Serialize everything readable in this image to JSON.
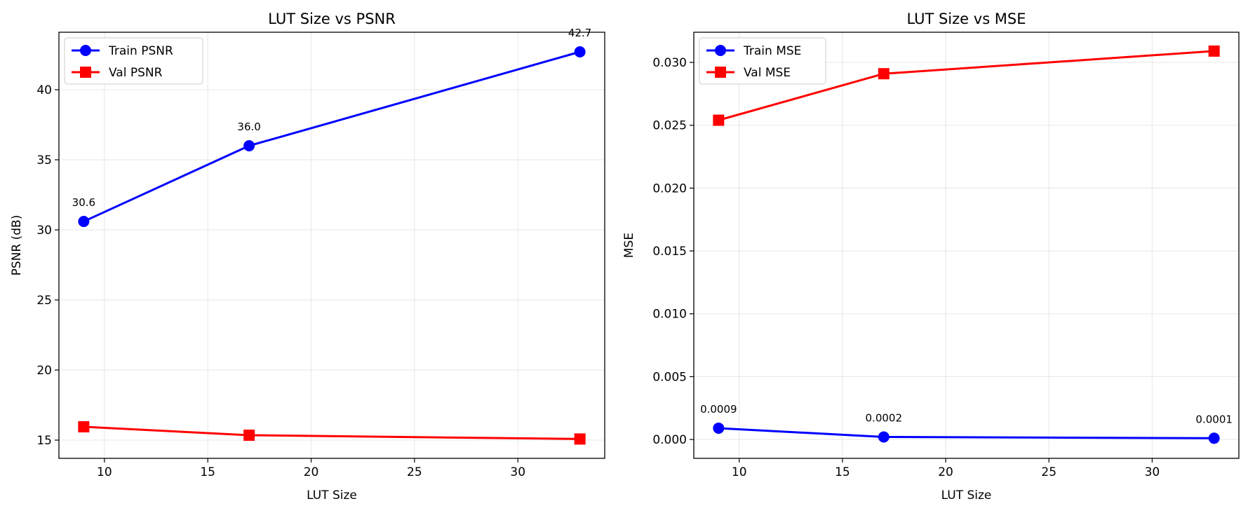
{
  "chart_data": [
    {
      "type": "line",
      "title": "LUT Size vs PSNR",
      "xlabel": "LUT Size",
      "ylabel": "PSNR (dB)",
      "xlim": [
        7.8,
        34.2
      ],
      "ylim": [
        13.7,
        44.1
      ],
      "x_ticks": [
        10,
        15,
        20,
        25,
        30
      ],
      "y_ticks": [
        15,
        20,
        25,
        30,
        35,
        40
      ],
      "grid": true,
      "legend_position": "upper left",
      "x": [
        9,
        17,
        33
      ],
      "series": [
        {
          "name": "Train PSNR",
          "values": [
            30.6,
            36.0,
            42.7
          ],
          "color": "#0000ff",
          "marker": "circle",
          "labels": [
            "30.6",
            "36.0",
            "42.7"
          ]
        },
        {
          "name": "Val PSNR",
          "values": [
            15.95,
            15.35,
            15.08
          ],
          "color": "#ff0000",
          "marker": "square"
        }
      ]
    },
    {
      "type": "line",
      "title": "LUT Size vs MSE",
      "xlabel": "LUT Size",
      "ylabel": "MSE",
      "xlim": [
        7.8,
        34.2
      ],
      "ylim": [
        -0.0015,
        0.0324
      ],
      "x_ticks": [
        10,
        15,
        20,
        25,
        30
      ],
      "y_ticks": [
        0.0,
        0.005,
        0.01,
        0.015,
        0.02,
        0.025,
        0.03
      ],
      "y_tick_labels": [
        "0.000",
        "0.005",
        "0.010",
        "0.015",
        "0.020",
        "0.025",
        "0.030"
      ],
      "grid": true,
      "legend_position": "upper left",
      "x": [
        9,
        17,
        33
      ],
      "series": [
        {
          "name": "Train MSE",
          "values": [
            0.0009,
            0.0002,
            0.0001
          ],
          "color": "#0000ff",
          "marker": "circle",
          "labels": [
            "0.0009",
            "0.0002",
            "0.0001"
          ]
        },
        {
          "name": "Val MSE",
          "values": [
            0.0254,
            0.0291,
            0.0309
          ],
          "color": "#ff0000",
          "marker": "square"
        }
      ]
    }
  ]
}
